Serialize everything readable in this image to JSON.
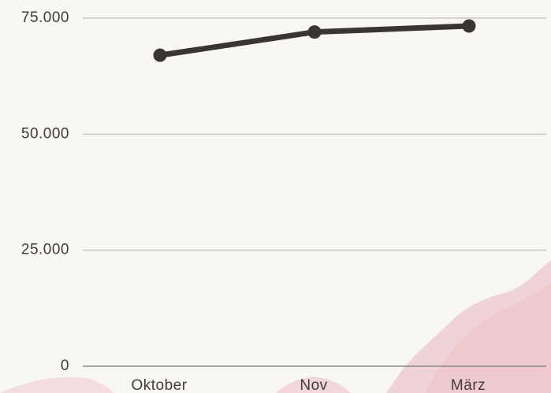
{
  "chart_data": {
    "type": "line",
    "categories": [
      "Oktober",
      "Nov",
      "März"
    ],
    "series": [
      {
        "color": "#3a3533",
        "values": [
          67000,
          72000,
          73300
        ]
      }
    ],
    "ylim": [
      0,
      75000
    ],
    "yticks": [
      0,
      {
        "value": 25000,
        "label": "25.000"
      },
      {
        "value": 50000,
        "label": "50.000"
      },
      {
        "value": 75000,
        "label": "75.000"
      }
    ],
    "grid": true
  }
}
